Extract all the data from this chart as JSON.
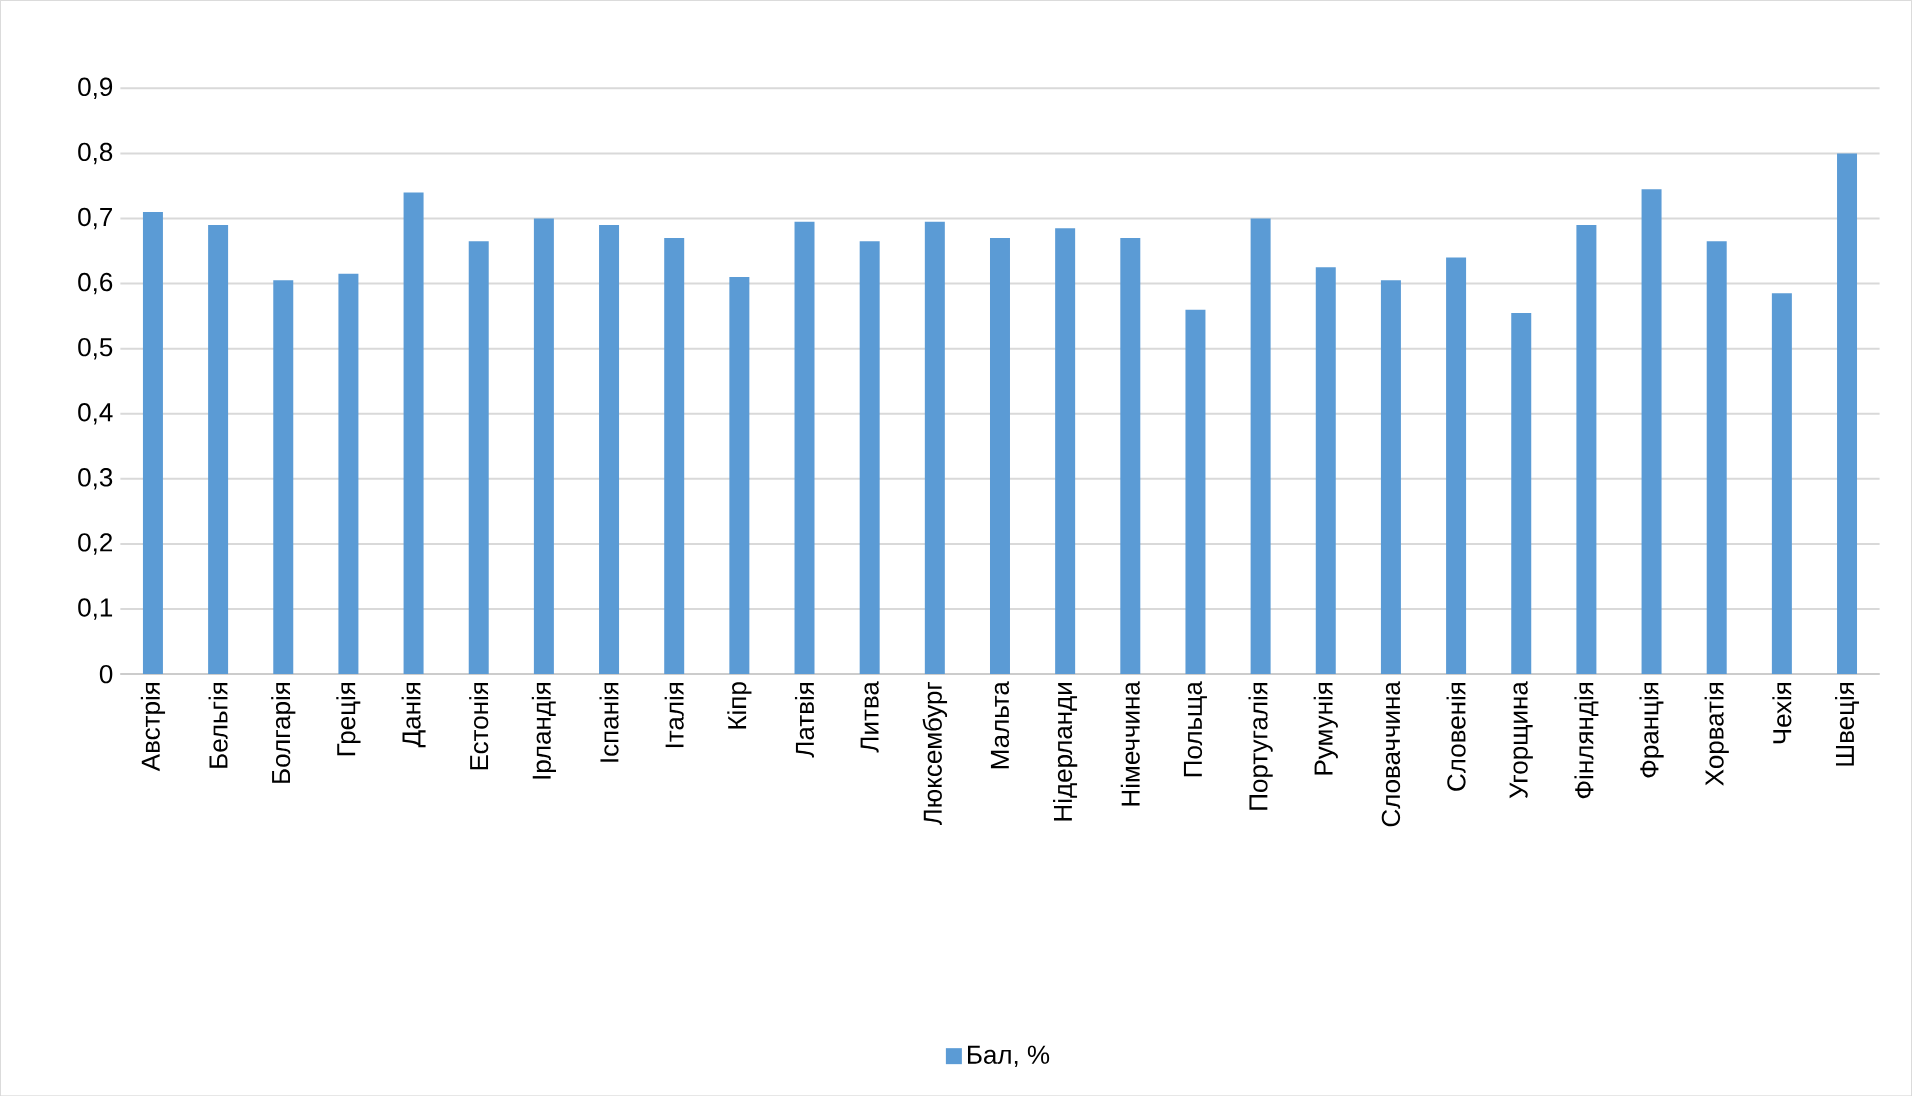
{
  "chart_data": {
    "type": "bar",
    "categories": [
      "Австрія",
      "Бельгія",
      "Болгарія",
      "Греція",
      "Данія",
      "Естонія",
      "Ірландія",
      "Іспанія",
      "Італія",
      "Кіпр",
      "Латвія",
      "Литва",
      "Люксембург",
      "Мальта",
      "Нідерланди",
      "Німеччина",
      "Польща",
      "Португалія",
      "Румунія",
      "Словаччина",
      "Словенія",
      "Угорщина",
      "Фінляндія",
      "Франція",
      "Хорватія",
      "Чехія",
      "Швеція"
    ],
    "series": [
      {
        "name": "Бал, %",
        "color": "#5b9bd5",
        "values": [
          0.71,
          0.69,
          0.605,
          0.615,
          0.74,
          0.665,
          0.7,
          0.69,
          0.67,
          0.61,
          0.695,
          0.665,
          0.695,
          0.67,
          0.685,
          0.67,
          0.56,
          0.7,
          0.625,
          0.605,
          0.64,
          0.555,
          0.69,
          0.745,
          0.665,
          0.585,
          0.8
        ]
      }
    ],
    "ylim": [
      0,
      0.9
    ],
    "yticks": [
      {
        "value": 0,
        "label": "0"
      },
      {
        "value": 0.1,
        "label": "0,1"
      },
      {
        "value": 0.2,
        "label": "0,2"
      },
      {
        "value": 0.3,
        "label": "0,3"
      },
      {
        "value": 0.4,
        "label": "0,4"
      },
      {
        "value": 0.5,
        "label": "0,5"
      },
      {
        "value": 0.6,
        "label": "0,6"
      },
      {
        "value": 0.7,
        "label": "0,7"
      },
      {
        "value": 0.8,
        "label": "0,8"
      },
      {
        "value": 0.9,
        "label": "0,9"
      }
    ],
    "grid": "y",
    "legend": "bottom"
  }
}
